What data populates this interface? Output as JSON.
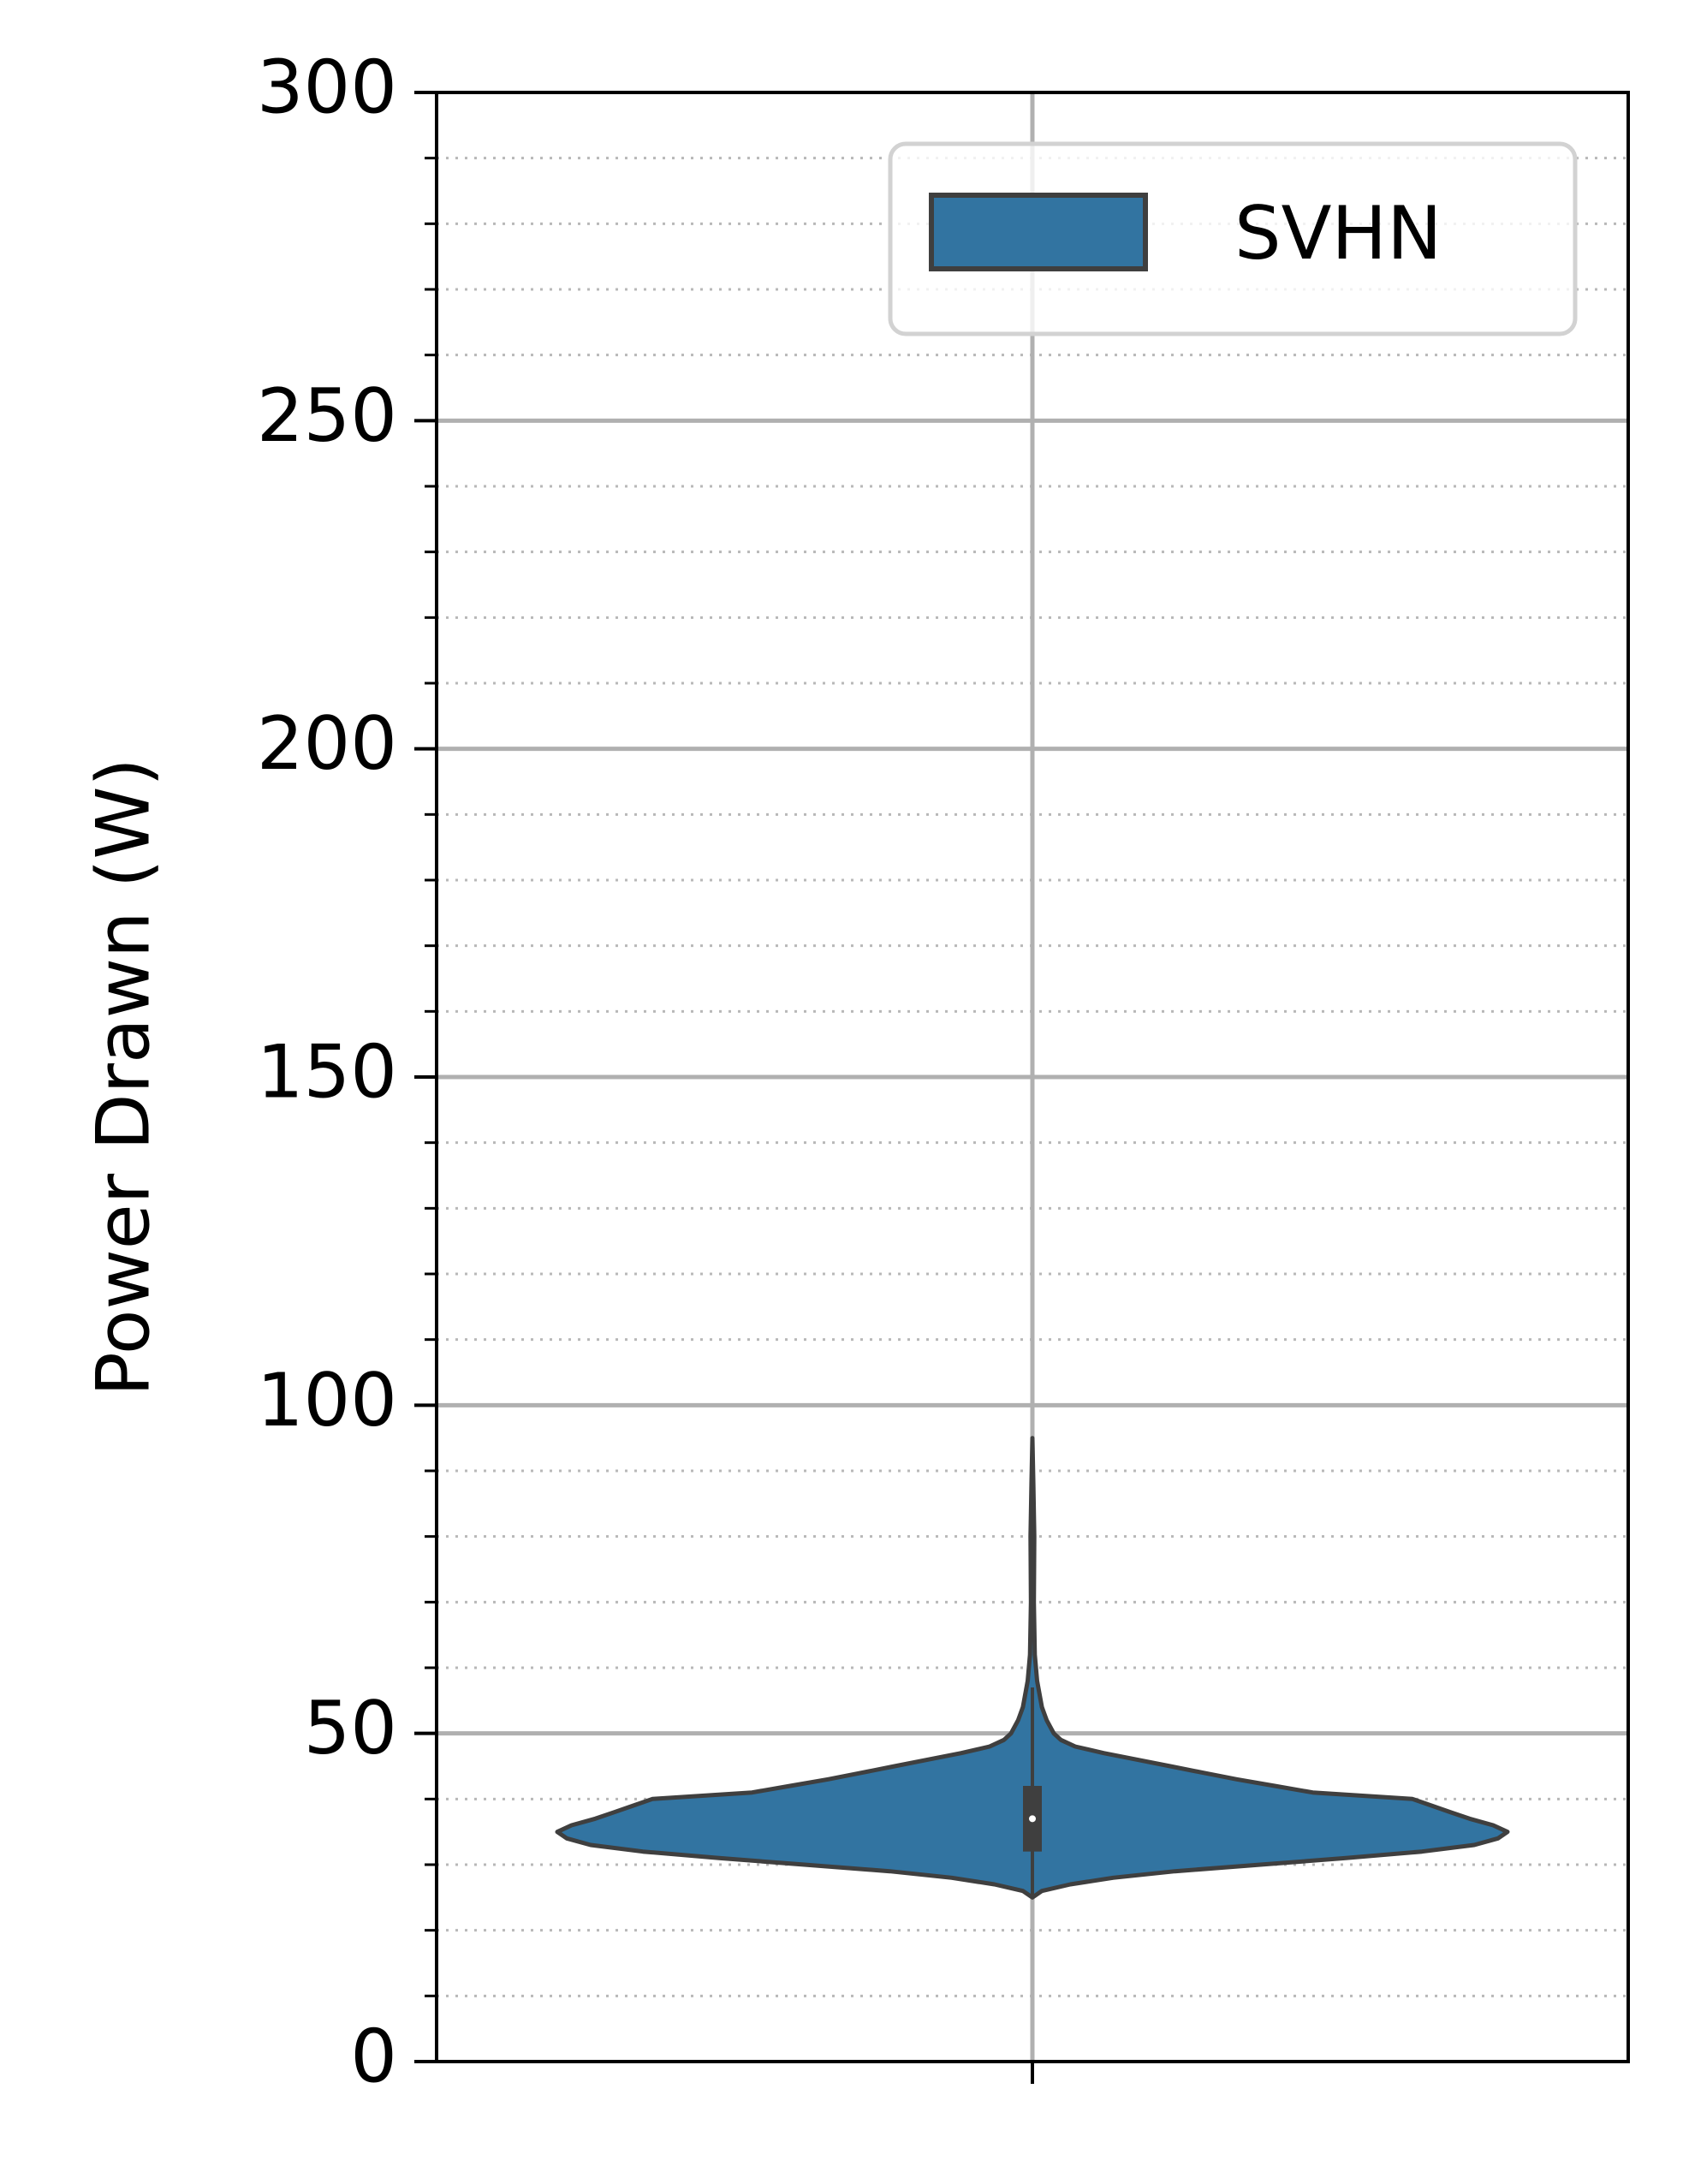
{
  "chart_data": {
    "type": "violin",
    "title": "",
    "xlabel": "",
    "ylabel": "Power Drawn (W)",
    "ylim": [
      0,
      300
    ],
    "yticks": [
      0,
      50,
      100,
      150,
      200,
      250,
      300
    ],
    "ytick_labels": [
      "0",
      "50",
      "100",
      "150",
      "200",
      "250",
      "300"
    ],
    "minor_tick_step": 10,
    "grid": {
      "major": true,
      "minor": true,
      "minor_style": "dotted"
    },
    "legend": {
      "position": "top-right",
      "entries": [
        "SVHN"
      ]
    },
    "series": [
      {
        "name": "SVHN",
        "color": "#3274a1",
        "min": 25,
        "max": 95,
        "q1": 32,
        "median": 37,
        "q3": 42,
        "density_profile": [
          [
            25,
            0.0
          ],
          [
            26,
            0.02
          ],
          [
            27,
            0.08
          ],
          [
            28,
            0.17
          ],
          [
            29,
            0.3
          ],
          [
            30,
            0.48
          ],
          [
            31,
            0.66
          ],
          [
            32,
            0.82
          ],
          [
            33,
            0.93
          ],
          [
            34,
            0.98
          ],
          [
            35,
            1.0
          ],
          [
            36,
            0.97
          ],
          [
            37,
            0.92
          ],
          [
            38,
            0.88
          ],
          [
            39,
            0.84
          ],
          [
            40,
            0.8
          ],
          [
            41,
            0.59
          ],
          [
            42,
            0.51
          ],
          [
            43,
            0.43
          ],
          [
            44,
            0.36
          ],
          [
            45,
            0.29
          ],
          [
            46,
            0.22
          ],
          [
            47,
            0.15
          ],
          [
            48,
            0.09
          ],
          [
            49,
            0.06
          ],
          [
            50,
            0.045
          ],
          [
            52,
            0.03
          ],
          [
            54,
            0.02
          ],
          [
            58,
            0.01
          ],
          [
            62,
            0.005
          ],
          [
            70,
            0.003
          ],
          [
            80,
            0.004
          ],
          [
            88,
            0.002
          ],
          [
            95,
            0.0
          ]
        ]
      }
    ],
    "colors": {
      "violin_fill": "#3274a1",
      "violin_edge": "#3f3f3f",
      "grid_major": "#b0b0b0",
      "grid_minor": "#b8b8b8",
      "axes": "#000000"
    }
  }
}
